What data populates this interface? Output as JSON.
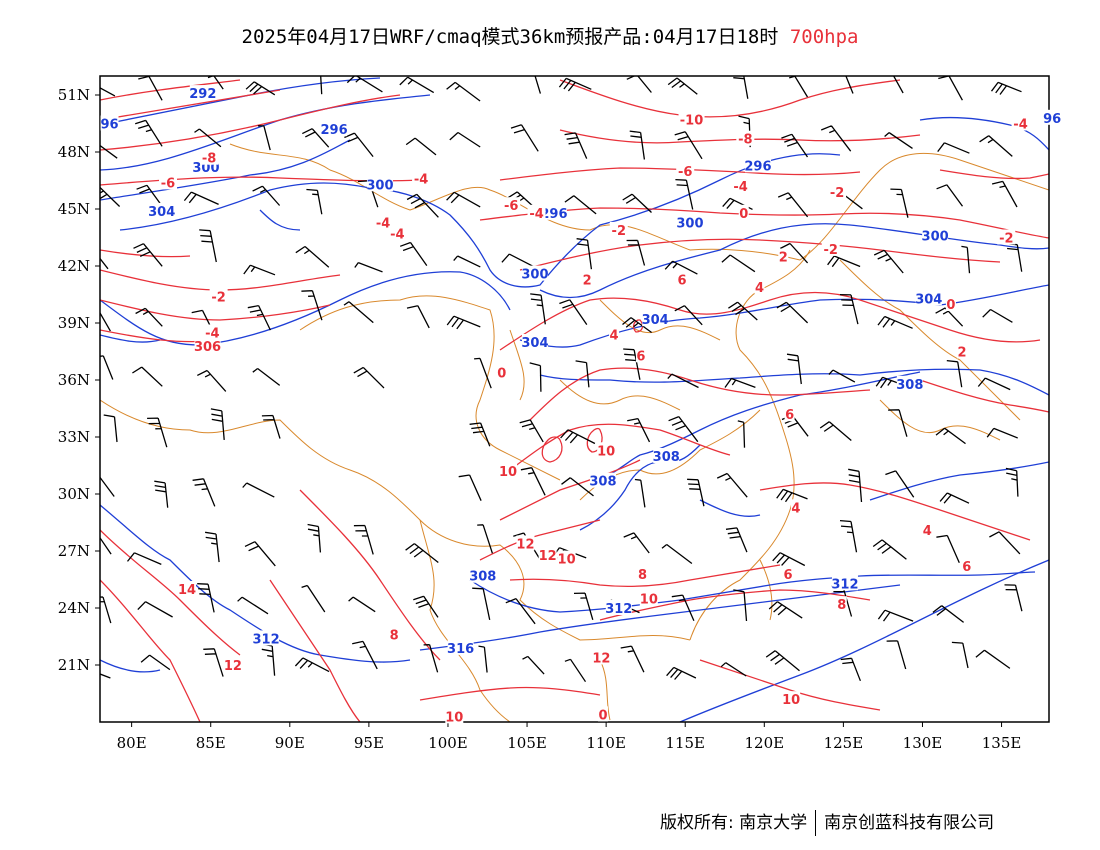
{
  "title": {
    "text": "2025年04月17日WRF/cmaq模式36km预报产品:04月17日18时",
    "level": "700hpa",
    "level_color": "#e8313a"
  },
  "axes": {
    "x_ticks": [
      "80E",
      "85E",
      "90E",
      "95E",
      "100E",
      "105E",
      "110E",
      "115E",
      "120E",
      "125E",
      "130E",
      "135E"
    ],
    "x_values": [
      80,
      85,
      90,
      95,
      100,
      105,
      110,
      115,
      120,
      125,
      130,
      135
    ],
    "y_ticks": [
      "51N",
      "48N",
      "45N",
      "42N",
      "39N",
      "36N",
      "33N",
      "30N",
      "27N",
      "24N",
      "21N"
    ],
    "y_values": [
      51,
      48,
      45,
      42,
      39,
      36,
      33,
      30,
      27,
      24,
      21
    ],
    "lon_range": [
      78,
      138
    ],
    "lat_range": [
      18,
      52
    ]
  },
  "colors": {
    "height_contour": "#1f3fd6",
    "temperature_contour": "#e8313a",
    "border": "#d9892d",
    "wind_barb": "#000000"
  },
  "height_labels": [
    {
      "text": "292",
      "lon": 84.5,
      "lat": 51.1
    },
    {
      "text": "96",
      "lon": 78.6,
      "lat": 49.5
    },
    {
      "text": "296",
      "lon": 92.8,
      "lat": 49.2
    },
    {
      "text": "300",
      "lon": 84.7,
      "lat": 47.2
    },
    {
      "text": "300",
      "lon": 95.7,
      "lat": 46.3
    },
    {
      "text": "296",
      "lon": 106.7,
      "lat": 44.8
    },
    {
      "text": "296",
      "lon": 119.6,
      "lat": 47.3
    },
    {
      "text": "304",
      "lon": 81.9,
      "lat": 44.9
    },
    {
      "text": "300",
      "lon": 115.3,
      "lat": 44.3
    },
    {
      "text": "300",
      "lon": 130.8,
      "lat": 43.6
    },
    {
      "text": "300",
      "lon": 105.5,
      "lat": 41.6
    },
    {
      "text": "304",
      "lon": 130.4,
      "lat": 40.3
    },
    {
      "text": "304",
      "lon": 113.1,
      "lat": 39.2
    },
    {
      "text": "304",
      "lon": 105.5,
      "lat": 38.0
    },
    {
      "text": "308",
      "lon": 129.2,
      "lat": 35.8
    },
    {
      "text": "308",
      "lon": 113.8,
      "lat": 32.0
    },
    {
      "text": "308",
      "lon": 109.8,
      "lat": 30.7
    },
    {
      "text": "308",
      "lon": 102.2,
      "lat": 25.7
    },
    {
      "text": "312",
      "lon": 125.1,
      "lat": 25.3
    },
    {
      "text": "312",
      "lon": 110.8,
      "lat": 24.0
    },
    {
      "text": "312",
      "lon": 88.5,
      "lat": 22.4
    },
    {
      "text": "316",
      "lon": 100.8,
      "lat": 21.9
    },
    {
      "text": "96",
      "lon": 138.2,
      "lat": 49.8
    }
  ],
  "temperature_labels": [
    {
      "text": "-10",
      "lon": 115.4,
      "lat": 49.7
    },
    {
      "text": "-8",
      "lon": 118.8,
      "lat": 48.7
    },
    {
      "text": "-8",
      "lon": 84.9,
      "lat": 47.7
    },
    {
      "text": "-6",
      "lon": 82.3,
      "lat": 46.4
    },
    {
      "text": "-4",
      "lon": 98.3,
      "lat": 46.6
    },
    {
      "text": "-6",
      "lon": 115.0,
      "lat": 47.0
    },
    {
      "text": "-4",
      "lon": 118.5,
      "lat": 46.2
    },
    {
      "text": "-2",
      "lon": 124.6,
      "lat": 45.9
    },
    {
      "text": "-4",
      "lon": 136.2,
      "lat": 49.5
    },
    {
      "text": "-6",
      "lon": 104.0,
      "lat": 45.2
    },
    {
      "text": "-4",
      "lon": 105.6,
      "lat": 44.8
    },
    {
      "text": "-4",
      "lon": 95.9,
      "lat": 44.3
    },
    {
      "text": "-4",
      "lon": 96.8,
      "lat": 43.7
    },
    {
      "text": "-2",
      "lon": 110.8,
      "lat": 43.9
    },
    {
      "text": "0",
      "lon": 118.7,
      "lat": 44.8
    },
    {
      "text": "-2",
      "lon": 135.3,
      "lat": 43.5
    },
    {
      "text": "-2",
      "lon": 124.2,
      "lat": 42.9
    },
    {
      "text": "2",
      "lon": 108.8,
      "lat": 41.3
    },
    {
      "text": "6",
      "lon": 114.8,
      "lat": 41.3
    },
    {
      "text": "4",
      "lon": 119.7,
      "lat": 40.9
    },
    {
      "text": "2",
      "lon": 121.2,
      "lat": 42.5
    },
    {
      "text": "0",
      "lon": 131.8,
      "lat": 40.0
    },
    {
      "text": "-2",
      "lon": 85.5,
      "lat": 40.4
    },
    {
      "text": "-4",
      "lon": 85.1,
      "lat": 38.5
    },
    {
      "text": "306",
      "lon": 84.8,
      "lat": 37.8
    },
    {
      "text": "4",
      "lon": 110.5,
      "lat": 38.4
    },
    {
      "text": "6",
      "lon": 112.2,
      "lat": 37.3
    },
    {
      "text": "2",
      "lon": 132.5,
      "lat": 37.5
    },
    {
      "text": "0",
      "lon": 103.4,
      "lat": 36.4
    },
    {
      "text": "6",
      "lon": 121.6,
      "lat": 34.2
    },
    {
      "text": "10",
      "lon": 110.0,
      "lat": 32.3
    },
    {
      "text": "10",
      "lon": 103.8,
      "lat": 31.2
    },
    {
      "text": "4",
      "lon": 122.0,
      "lat": 29.3
    },
    {
      "text": "4",
      "lon": 130.3,
      "lat": 28.1
    },
    {
      "text": "6",
      "lon": 132.8,
      "lat": 26.2
    },
    {
      "text": "12",
      "lon": 104.9,
      "lat": 27.4
    },
    {
      "text": "12",
      "lon": 106.3,
      "lat": 26.8
    },
    {
      "text": "10",
      "lon": 107.5,
      "lat": 26.6
    },
    {
      "text": "8",
      "lon": 112.3,
      "lat": 25.8
    },
    {
      "text": "6",
      "lon": 121.5,
      "lat": 25.8
    },
    {
      "text": "10",
      "lon": 112.7,
      "lat": 24.5
    },
    {
      "text": "8",
      "lon": 124.9,
      "lat": 24.2
    },
    {
      "text": "14",
      "lon": 83.5,
      "lat": 25.0
    },
    {
      "text": "8",
      "lon": 96.6,
      "lat": 22.6
    },
    {
      "text": "12",
      "lon": 86.4,
      "lat": 21.0
    },
    {
      "text": "12",
      "lon": 109.7,
      "lat": 21.4
    },
    {
      "text": "10",
      "lon": 121.7,
      "lat": 19.2
    },
    {
      "text": "10",
      "lon": 100.4,
      "lat": 18.3
    },
    {
      "text": "0",
      "lon": 109.8,
      "lat": 18.4
    }
  ],
  "footer": {
    "left": "版权所有: 南京大学",
    "right": "南京创蓝科技有限公司"
  }
}
